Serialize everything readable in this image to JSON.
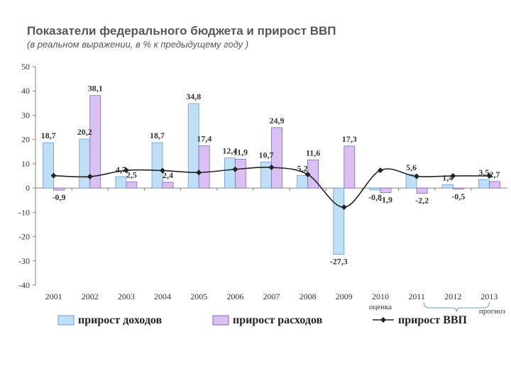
{
  "title": "Показатели федерального бюджета и прирост ВВП",
  "subtitle": "(в реальном выражении, в % к предыдущему году )",
  "colors": {
    "revenue": "#bfdff7",
    "revenue_stroke": "#6a9cc8",
    "expense": "#d9bff2",
    "expense_stroke": "#8a66b3",
    "gdp": "#222222",
    "axis": "#7f7f7f"
  },
  "chart_data": {
    "type": "bar",
    "title": "",
    "xlabel": "",
    "ylabel": "",
    "ylim": [
      -40,
      50
    ],
    "yticks": [
      -40,
      -30,
      -20,
      -10,
      0,
      10,
      20,
      30,
      40,
      50
    ],
    "grid": false,
    "legend_position": "bottom",
    "categories": [
      "2001",
      "2002",
      "2003",
      "2004",
      "2005",
      "2006",
      "2007",
      "2008",
      "2009",
      "2010",
      "2011",
      "2012",
      "2013"
    ],
    "category_notes": {
      "2010": "оценка",
      "forecast": {
        "from": "2011",
        "to": "2013",
        "label": "прогноз"
      }
    },
    "series": [
      {
        "name": "прирост доходов",
        "type": "bar",
        "values": [
          18.7,
          20.2,
          4.7,
          18.7,
          34.8,
          12.4,
          10.7,
          5.2,
          -27.3,
          -0.8,
          5.6,
          1.4,
          3.5
        ],
        "labels": [
          "18,7",
          "20,2",
          "4,7",
          "18,7",
          "34,8",
          "12,4",
          "10,7",
          "5,2",
          "-27,3",
          "-0,8",
          "5,6",
          "1,4",
          "3,5"
        ]
      },
      {
        "name": "прирост расходов",
        "type": "bar",
        "values": [
          -0.9,
          38.1,
          2.5,
          2.4,
          17.4,
          11.9,
          24.9,
          11.6,
          17.3,
          -1.9,
          -2.2,
          -0.5,
          2.7
        ],
        "labels": [
          "-0,9",
          "38,1",
          "2,5",
          "2,4",
          "17,4",
          "11,9",
          "24,9",
          "11,6",
          "17,3",
          "-1,9",
          "-2,2",
          "-0,5",
          "2,7"
        ]
      },
      {
        "name": "прирост ВВП",
        "type": "line",
        "values": [
          5.1,
          4.7,
          7.3,
          7.2,
          6.4,
          7.7,
          8.5,
          5.6,
          -7.9,
          7.3,
          4.8,
          5.0,
          5.0
        ]
      }
    ]
  }
}
